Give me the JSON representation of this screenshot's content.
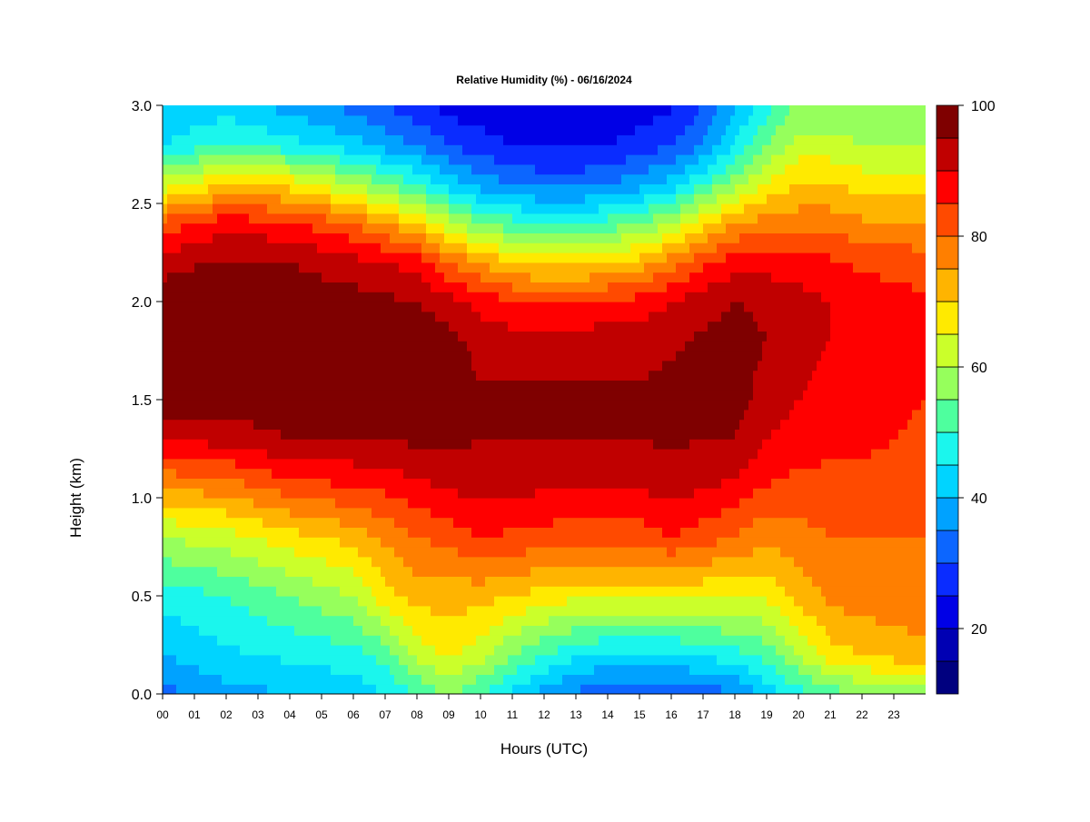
{
  "chart_data": {
    "type": "heatmap",
    "title": "Relative Humidity (%) - 06/16/2024",
    "xlabel": "Hours (UTC)",
    "ylabel": "Height (km)",
    "x_ticks": [
      "00",
      "01",
      "02",
      "03",
      "04",
      "05",
      "06",
      "07",
      "08",
      "09",
      "10",
      "11",
      "12",
      "13",
      "14",
      "15",
      "16",
      "17",
      "18",
      "19",
      "20",
      "21",
      "22",
      "23"
    ],
    "xlim": [
      0,
      24
    ],
    "y_ticks": [
      "0.0",
      "0.5",
      "1.0",
      "1.5",
      "2.0",
      "2.5",
      "3.0"
    ],
    "ylim": [
      0,
      3
    ],
    "colorbar": {
      "label_values": [
        20,
        40,
        60,
        80,
        100
      ],
      "range": [
        10,
        100
      ],
      "bins": [
        {
          "from": 10,
          "to": 15,
          "color": "#00007f"
        },
        {
          "from": 15,
          "to": 20,
          "color": "#0000b3"
        },
        {
          "from": 20,
          "to": 25,
          "color": "#0000e6"
        },
        {
          "from": 25,
          "to": 30,
          "color": "#0a2cff"
        },
        {
          "from": 30,
          "to": 35,
          "color": "#0c66ff"
        },
        {
          "from": 35,
          "to": 40,
          "color": "#00a2ff"
        },
        {
          "from": 40,
          "to": 45,
          "color": "#00d4ff"
        },
        {
          "from": 45,
          "to": 50,
          "color": "#1bf6ed"
        },
        {
          "from": 50,
          "to": 55,
          "color": "#4eff9e"
        },
        {
          "from": 55,
          "to": 60,
          "color": "#96ff5c"
        },
        {
          "from": 60,
          "to": 65,
          "color": "#cbff2a"
        },
        {
          "from": 65,
          "to": 70,
          "color": "#ffea00"
        },
        {
          "from": 70,
          "to": 75,
          "color": "#ffb400"
        },
        {
          "from": 75,
          "to": 80,
          "color": "#ff7f00"
        },
        {
          "from": 80,
          "to": 85,
          "color": "#ff4a00"
        },
        {
          "from": 85,
          "to": 90,
          "color": "#ff0000"
        },
        {
          "from": 90,
          "to": 95,
          "color": "#c00000"
        },
        {
          "from": 95,
          "to": 100,
          "color": "#7f0000"
        }
      ]
    },
    "profile_heights_km": [
      0.0,
      0.2,
      0.5,
      0.8,
      1.1,
      1.3,
      1.5,
      1.8,
      2.0,
      2.2,
      2.4,
      2.6,
      2.8,
      3.0
    ],
    "profiles": [
      {
        "hour": 0,
        "rh": [
          33,
          40,
          47,
          60,
          78,
          90,
          98,
          98,
          98,
          93,
          82,
          62,
          45,
          40
        ]
      },
      {
        "hour": 2,
        "rh": [
          38,
          44,
          50,
          63,
          80,
          92,
          98,
          98,
          98,
          96,
          88,
          70,
          50,
          43
        ]
      },
      {
        "hour": 4,
        "rh": [
          40,
          46,
          55,
          68,
          85,
          95,
          98,
          98,
          98,
          95,
          86,
          68,
          47,
          38
        ]
      },
      {
        "hour": 6,
        "rh": [
          42,
          48,
          60,
          72,
          87,
          95,
          98,
          98,
          97,
          92,
          80,
          60,
          42,
          33
        ]
      },
      {
        "hour": 7,
        "rh": [
          45,
          52,
          68,
          76,
          88,
          95,
          98,
          98,
          96,
          90,
          75,
          55,
          38,
          30
        ]
      },
      {
        "hour": 8,
        "rh": [
          50,
          62,
          72,
          80,
          90,
          96,
          98,
          98,
          95,
          88,
          70,
          50,
          35,
          26
        ]
      },
      {
        "hour": 9,
        "rh": [
          56,
          66,
          72,
          82,
          92,
          96,
          98,
          97,
          92,
          80,
          62,
          43,
          30,
          23
        ]
      },
      {
        "hour": 10,
        "rh": [
          50,
          62,
          72,
          85,
          93,
          95,
          96,
          93,
          88,
          75,
          55,
          38,
          27,
          22
        ]
      },
      {
        "hour": 11,
        "rh": [
          44,
          55,
          70,
          84,
          93,
          95,
          96,
          92,
          86,
          70,
          52,
          35,
          25,
          22
        ]
      },
      {
        "hour": 12,
        "rh": [
          38,
          50,
          68,
          83,
          92,
          95,
          96,
          92,
          85,
          68,
          50,
          33,
          24,
          21
        ]
      },
      {
        "hour": 13,
        "rh": [
          34,
          46,
          66,
          82,
          92,
          95,
          96,
          92,
          85,
          68,
          50,
          33,
          24,
          22
        ]
      },
      {
        "hour": 14,
        "rh": [
          30,
          44,
          66,
          82,
          92,
          95,
          96,
          93,
          86,
          70,
          52,
          35,
          25,
          22
        ]
      },
      {
        "hour": 15,
        "rh": [
          30,
          44,
          66,
          82,
          92,
          95,
          96,
          93,
          87,
          72,
          55,
          38,
          27,
          22
        ]
      },
      {
        "hour": 16,
        "rh": [
          30,
          44,
          66,
          85,
          93,
          96,
          97,
          94,
          90,
          78,
          60,
          42,
          30,
          24
        ]
      },
      {
        "hour": 17,
        "rh": [
          32,
          46,
          66,
          82,
          92,
          95,
          96,
          96,
          93,
          84,
          68,
          50,
          35,
          30
        ]
      },
      {
        "hour": 18,
        "rh": [
          34,
          48,
          66,
          80,
          90,
          95,
          97,
          97,
          95,
          88,
          75,
          58,
          45,
          40
        ]
      },
      {
        "hour": 19,
        "rh": [
          42,
          52,
          66,
          76,
          86,
          90,
          93,
          95,
          94,
          88,
          77,
          66,
          55,
          48
        ]
      },
      {
        "hour": 20,
        "rh": [
          48,
          60,
          72,
          78,
          84,
          88,
          90,
          92,
          92,
          87,
          78,
          70,
          62,
          56
        ]
      },
      {
        "hour": 21,
        "rh": [
          52,
          68,
          76,
          80,
          84,
          86,
          88,
          90,
          90,
          86,
          78,
          70,
          62,
          56
        ]
      },
      {
        "hour": 22,
        "rh": [
          55,
          70,
          78,
          80,
          84,
          86,
          87,
          89,
          88,
          84,
          76,
          68,
          60,
          55
        ]
      },
      {
        "hour": 24,
        "rh": [
          58,
          74,
          78,
          80,
          83,
          84,
          85,
          86,
          86,
          82,
          76,
          68,
          60,
          55
        ]
      }
    ]
  }
}
